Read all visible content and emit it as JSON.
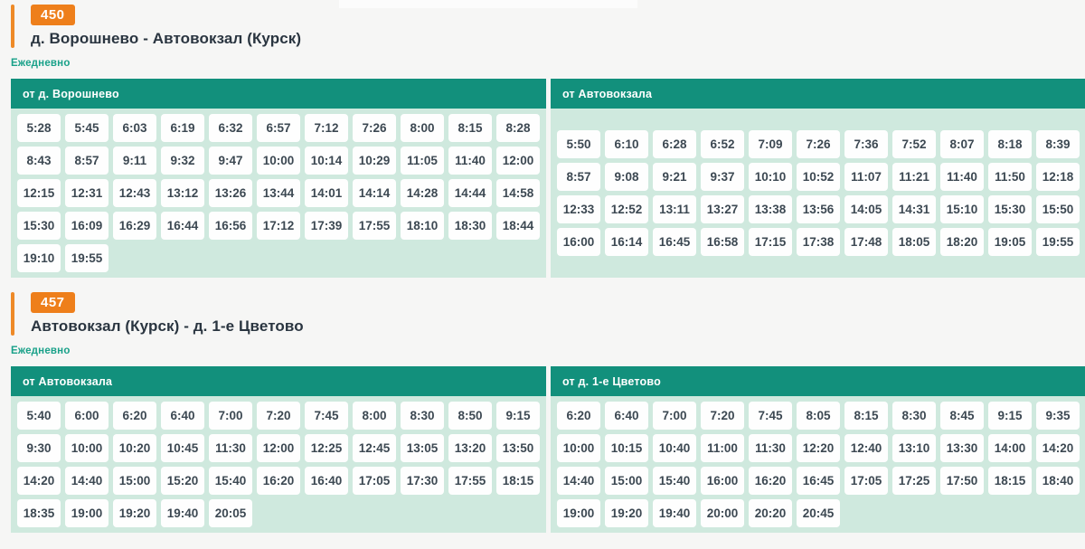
{
  "theme": {
    "page_bg": "#f6f6f5",
    "accent_orange": "#ee7f1b",
    "header_teal": "#12907c",
    "body_mint": "#cfe9de",
    "note_green": "#19a189",
    "chip_bg": "#fefefe",
    "chip_text": "#3c4852",
    "title_text": "#2a3540"
  },
  "routes": [
    {
      "badge": "450",
      "title": "д. Ворошнево - Автовокзал (Курск)",
      "schedule_note": "Ежедневно",
      "panels": [
        {
          "header": "от д. Ворошнево",
          "rows": [
            [
              "5:28",
              "5:45",
              "6:03",
              "6:19",
              "6:32",
              "6:57",
              "7:12",
              "7:26",
              "8:00",
              "8:15",
              "8:28"
            ],
            [
              "8:43",
              "8:57",
              "9:11",
              "9:32",
              "9:47",
              "10:00",
              "10:14",
              "10:29",
              "11:05",
              "11:40",
              "12:00"
            ],
            [
              "12:15",
              "12:31",
              "12:43",
              "13:12",
              "13:26",
              "13:44",
              "14:01",
              "14:14",
              "14:28",
              "14:44",
              "14:58"
            ],
            [
              "15:30",
              "16:09",
              "16:29",
              "16:44",
              "16:56",
              "17:12",
              "17:39",
              "17:55",
              "18:10",
              "18:30",
              "18:44"
            ],
            [
              "19:10",
              "19:55"
            ]
          ]
        },
        {
          "header": "от Автовокзала",
          "rows": [
            [
              "5:50",
              "6:10",
              "6:28",
              "6:52",
              "7:09",
              "7:26",
              "7:36",
              "7:52",
              "8:07",
              "8:18",
              "8:39"
            ],
            [
              "8:57",
              "9:08",
              "9:21",
              "9:37",
              "10:10",
              "10:52",
              "11:07",
              "11:21",
              "11:40",
              "11:50",
              "12:18"
            ],
            [
              "12:33",
              "12:52",
              "13:11",
              "13:27",
              "13:38",
              "13:56",
              "14:05",
              "14:31",
              "15:10",
              "15:30",
              "15:50"
            ],
            [
              "16:00",
              "16:14",
              "16:45",
              "16:58",
              "17:15",
              "17:38",
              "17:48",
              "18:05",
              "18:20",
              "19:05",
              "19:55"
            ]
          ]
        }
      ]
    },
    {
      "badge": "457",
      "title": "Автовокзал (Курск) - д. 1-е Цветово",
      "schedule_note": "Ежедневно",
      "panels": [
        {
          "header": "от Автовокзала",
          "rows": [
            [
              "5:40",
              "6:00",
              "6:20",
              "6:40",
              "7:00",
              "7:20",
              "7:45",
              "8:00",
              "8:30",
              "8:50",
              "9:15"
            ],
            [
              "9:30",
              "10:00",
              "10:20",
              "10:45",
              "11:30",
              "12:00",
              "12:25",
              "12:45",
              "13:05",
              "13:20",
              "13:50"
            ],
            [
              "14:20",
              "14:40",
              "15:00",
              "15:20",
              "15:40",
              "16:20",
              "16:40",
              "17:05",
              "17:30",
              "17:55",
              "18:15"
            ],
            [
              "18:35",
              "19:00",
              "19:20",
              "19:40",
              "20:05"
            ]
          ]
        },
        {
          "header": "от д. 1-е Цветово",
          "rows": [
            [
              "6:20",
              "6:40",
              "7:00",
              "7:20",
              "7:45",
              "8:05",
              "8:15",
              "8:30",
              "8:45",
              "9:15",
              "9:35"
            ],
            [
              "10:00",
              "10:15",
              "10:40",
              "11:00",
              "11:30",
              "12:20",
              "12:40",
              "13:10",
              "13:30",
              "14:00",
              "14:20"
            ],
            [
              "14:40",
              "15:00",
              "15:40",
              "16:00",
              "16:20",
              "16:45",
              "17:05",
              "17:25",
              "17:50",
              "18:15",
              "18:40"
            ],
            [
              "19:00",
              "19:20",
              "19:40",
              "20:00",
              "20:20",
              "20:45"
            ]
          ]
        }
      ]
    }
  ]
}
